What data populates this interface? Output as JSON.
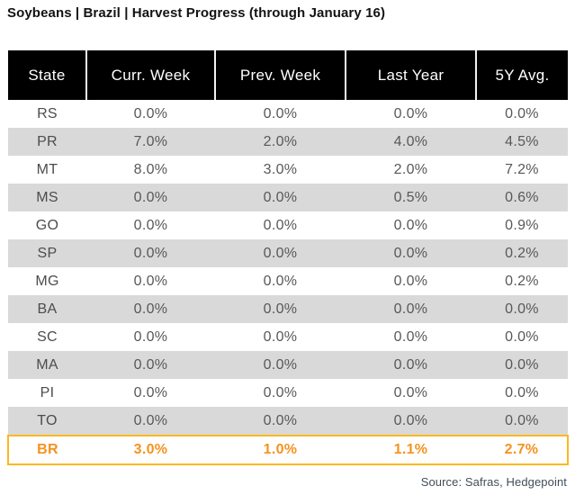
{
  "title": "Soybeans | Brazil | Harvest Progress (through January 16)",
  "source": "Source: Safras, Hedgepoint",
  "colors": {
    "header_bg": "#000000",
    "header_text": "#ffffff",
    "row_alt_bg": "#d9d9d9",
    "cell_text": "#57585a",
    "highlight_text": "#f6921e",
    "highlight_border": "#fcb81e"
  },
  "chart_data": {
    "type": "table",
    "title": "Soybeans | Brazil | Harvest Progress (through January 16)",
    "columns": [
      "State",
      "Curr. Week",
      "Prev. Week",
      "Last Year",
      "5Y Avg."
    ],
    "rows": [
      {
        "state": "RS",
        "values": [
          "0.0%",
          "0.0%",
          "0.0%",
          "0.0%"
        ],
        "highlight": false
      },
      {
        "state": "PR",
        "values": [
          "7.0%",
          "2.0%",
          "4.0%",
          "4.5%"
        ],
        "highlight": false
      },
      {
        "state": "MT",
        "values": [
          "8.0%",
          "3.0%",
          "2.0%",
          "7.2%"
        ],
        "highlight": false
      },
      {
        "state": "MS",
        "values": [
          "0.0%",
          "0.0%",
          "0.5%",
          "0.6%"
        ],
        "highlight": false
      },
      {
        "state": "GO",
        "values": [
          "0.0%",
          "0.0%",
          "0.0%",
          "0.9%"
        ],
        "highlight": false
      },
      {
        "state": "SP",
        "values": [
          "0.0%",
          "0.0%",
          "0.0%",
          "0.2%"
        ],
        "highlight": false
      },
      {
        "state": "MG",
        "values": [
          "0.0%",
          "0.0%",
          "0.0%",
          "0.2%"
        ],
        "highlight": false
      },
      {
        "state": "BA",
        "values": [
          "0.0%",
          "0.0%",
          "0.0%",
          "0.0%"
        ],
        "highlight": false
      },
      {
        "state": "SC",
        "values": [
          "0.0%",
          "0.0%",
          "0.0%",
          "0.0%"
        ],
        "highlight": false
      },
      {
        "state": "MA",
        "values": [
          "0.0%",
          "0.0%",
          "0.0%",
          "0.0%"
        ],
        "highlight": false
      },
      {
        "state": "PI",
        "values": [
          "0.0%",
          "0.0%",
          "0.0%",
          "0.0%"
        ],
        "highlight": false
      },
      {
        "state": "TO",
        "values": [
          "0.0%",
          "0.0%",
          "0.0%",
          "0.0%"
        ],
        "highlight": false
      },
      {
        "state": "BR",
        "values": [
          "3.0%",
          "1.0%",
          "1.1%",
          "2.7%"
        ],
        "highlight": true
      }
    ],
    "numeric_rows": {
      "RS": [
        0.0,
        0.0,
        0.0,
        0.0
      ],
      "PR": [
        7.0,
        2.0,
        4.0,
        4.5
      ],
      "MT": [
        8.0,
        3.0,
        2.0,
        7.2
      ],
      "MS": [
        0.0,
        0.0,
        0.5,
        0.6
      ],
      "GO": [
        0.0,
        0.0,
        0.0,
        0.9
      ],
      "SP": [
        0.0,
        0.0,
        0.0,
        0.2
      ],
      "MG": [
        0.0,
        0.0,
        0.0,
        0.2
      ],
      "BA": [
        0.0,
        0.0,
        0.0,
        0.0
      ],
      "SC": [
        0.0,
        0.0,
        0.0,
        0.0
      ],
      "MA": [
        0.0,
        0.0,
        0.0,
        0.0
      ],
      "PI": [
        0.0,
        0.0,
        0.0,
        0.0
      ],
      "TO": [
        0.0,
        0.0,
        0.0,
        0.0
      ],
      "BR": [
        3.0,
        1.0,
        1.1,
        2.7
      ]
    },
    "unit": "percent"
  }
}
